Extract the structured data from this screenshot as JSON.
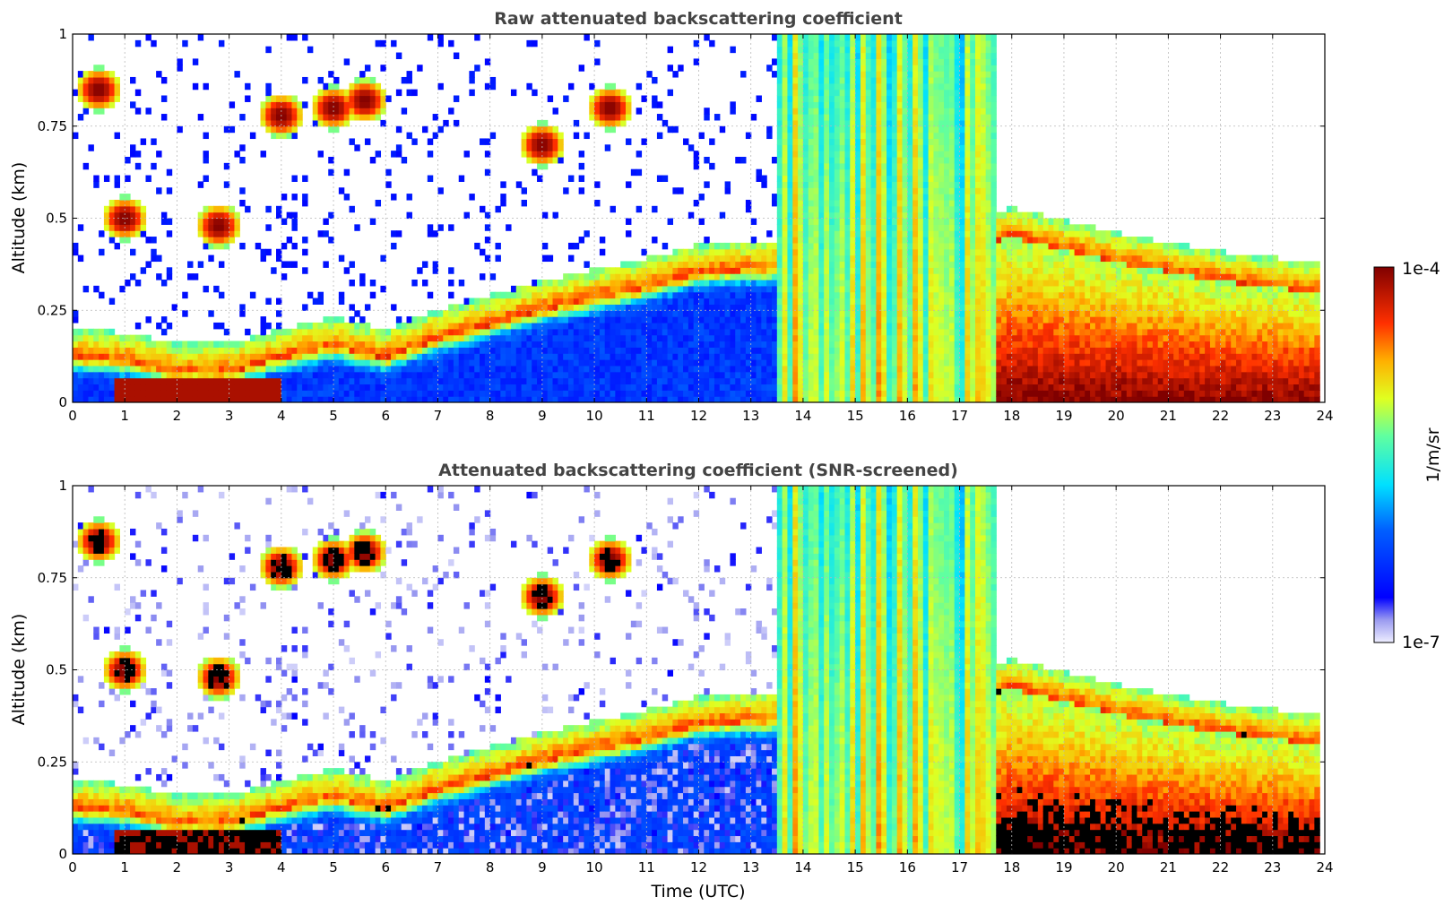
{
  "chart_data": [
    {
      "type": "heatmap",
      "title": "Raw attenuated backscattering coefficient",
      "xlabel": "",
      "ylabel": "Altitude (km)",
      "xlim": [
        0,
        24
      ],
      "ylim": [
        0,
        1
      ],
      "x_ticks": [
        "0",
        "1",
        "2",
        "3",
        "4",
        "5",
        "6",
        "7",
        "8",
        "9",
        "10",
        "11",
        "12",
        "13",
        "14",
        "15",
        "16",
        "17",
        "18",
        "19",
        "20",
        "21",
        "22",
        "23",
        "24"
      ],
      "y_ticks": [
        "0",
        "0.25",
        "0.5",
        "0.75",
        "1"
      ],
      "grid": true,
      "features": {
        "boundary_layer_top_km": [
          [
            0,
            0.12
          ],
          [
            1,
            0.11
          ],
          [
            2,
            0.08
          ],
          [
            3,
            0.08
          ],
          [
            4,
            0.12
          ],
          [
            5,
            0.15
          ],
          [
            6,
            0.12
          ],
          [
            7,
            0.17
          ],
          [
            8,
            0.21
          ],
          [
            9,
            0.25
          ],
          [
            10,
            0.28
          ],
          [
            11,
            0.31
          ],
          [
            12,
            0.35
          ],
          [
            13,
            0.36
          ],
          [
            13.5,
            0.36
          ]
        ],
        "saturated_band_utc": [
          13.5,
          17.7
        ],
        "late_layer_top_km": [
          [
            15.5,
            0.35
          ],
          [
            18,
            0.45
          ],
          [
            20,
            0.38
          ],
          [
            22,
            0.33
          ],
          [
            23.8,
            0.3
          ]
        ],
        "cloud_patches_km": [
          [
            0.5,
            0.85
          ],
          [
            1,
            0.5
          ],
          [
            2.8,
            0.48
          ],
          [
            4,
            0.78
          ],
          [
            5,
            0.8
          ],
          [
            5.6,
            0.82
          ],
          [
            9,
            0.7
          ],
          [
            10.3,
            0.8
          ]
        ]
      },
      "masked": false
    },
    {
      "type": "heatmap",
      "title": "Attenuated backscattering coefficient (SNR-screened)",
      "xlabel": "Time (UTC)",
      "ylabel": "Altitude (km)",
      "xlim": [
        0,
        24
      ],
      "ylim": [
        0,
        1
      ],
      "x_ticks": [
        "0",
        "1",
        "2",
        "3",
        "4",
        "5",
        "6",
        "7",
        "8",
        "9",
        "10",
        "11",
        "12",
        "13",
        "14",
        "15",
        "16",
        "17",
        "18",
        "19",
        "20",
        "21",
        "22",
        "23",
        "24"
      ],
      "y_ticks": [
        "0",
        "0.25",
        "0.5",
        "0.75",
        "1"
      ],
      "grid": true,
      "masked": true
    }
  ],
  "colorbar": {
    "label": "1/m/sr",
    "max_label": "1e-4",
    "min_label": "1e-7",
    "colormap": "jet",
    "scale": "log",
    "range": [
      1e-07,
      0.0001
    ]
  }
}
